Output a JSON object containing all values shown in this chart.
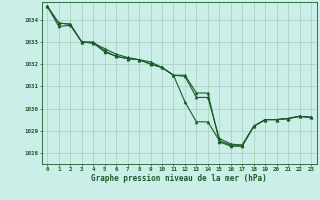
{
  "background_color": "#cceee8",
  "grid_color": "#aaccbb",
  "line_color": "#1a5c28",
  "xlabel": "Graphe pression niveau de la mer (hPa)",
  "ylim": [
    1027.5,
    1034.8
  ],
  "xlim": [
    -0.5,
    23.5
  ],
  "yticks": [
    1028,
    1029,
    1030,
    1031,
    1032,
    1033,
    1034
  ],
  "xticks": [
    0,
    1,
    2,
    3,
    4,
    5,
    6,
    7,
    8,
    9,
    10,
    11,
    12,
    13,
    14,
    15,
    16,
    17,
    18,
    19,
    20,
    21,
    22,
    23
  ],
  "series1_x": [
    0,
    1,
    2,
    3,
    4,
    5,
    6,
    7,
    8,
    9,
    10,
    11,
    12,
    13,
    14,
    15,
    16,
    17,
    18,
    19,
    20,
    21,
    22,
    23
  ],
  "series1_y": [
    1034.6,
    1033.85,
    1033.8,
    1033.0,
    1032.95,
    1032.7,
    1032.45,
    1032.3,
    1032.2,
    1032.0,
    1031.85,
    1031.5,
    1031.45,
    1030.5,
    1030.5,
    1028.65,
    1028.4,
    1028.35,
    1029.2,
    1029.5,
    1029.5,
    1029.55,
    1029.65,
    1029.6
  ],
  "series2_x": [
    0,
    1,
    2,
    3,
    4,
    5,
    6,
    7,
    8,
    9,
    10,
    11,
    12,
    13,
    14,
    15,
    16,
    17,
    18,
    19,
    20,
    21,
    22,
    23
  ],
  "series2_y": [
    1034.6,
    1033.7,
    1033.75,
    1033.0,
    1032.95,
    1032.55,
    1032.35,
    1032.25,
    1032.2,
    1032.0,
    1031.85,
    1031.5,
    1031.5,
    1030.7,
    1030.7,
    1028.5,
    1028.3,
    1028.3,
    1029.2,
    1029.5,
    1029.5,
    1029.55,
    1029.65,
    1029.6
  ],
  "series3_x": [
    0,
    1,
    2,
    3,
    4,
    5,
    6,
    7,
    8,
    9,
    10,
    11,
    12,
    13,
    14,
    15,
    16,
    17,
    18,
    19,
    20,
    21,
    22,
    23
  ],
  "series3_y": [
    1034.6,
    1033.85,
    1033.8,
    1033.0,
    1033.0,
    1032.6,
    1032.35,
    1032.25,
    1032.2,
    1032.1,
    1031.85,
    1031.5,
    1030.3,
    1029.4,
    1029.4,
    1028.55,
    1028.35,
    1028.35,
    1029.2,
    1029.5,
    1029.5,
    1029.55,
    1029.65,
    1029.6
  ]
}
